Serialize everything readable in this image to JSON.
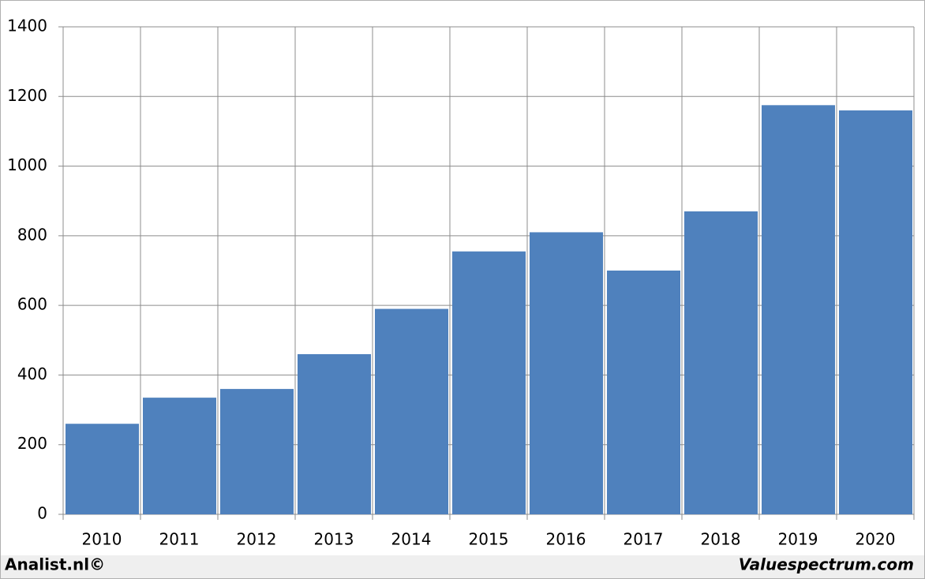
{
  "chart_data": {
    "type": "bar",
    "categories": [
      "2010",
      "2011",
      "2012",
      "2013",
      "2014",
      "2015",
      "2016",
      "2017",
      "2018",
      "2019",
      "2020"
    ],
    "values": [
      260,
      335,
      360,
      460,
      590,
      755,
      810,
      700,
      870,
      1175,
      1160
    ],
    "color": "#4f81bd",
    "ylim": [
      0,
      1400
    ],
    "yticks": [
      0,
      200,
      400,
      600,
      800,
      1000,
      1200,
      1400
    ],
    "grid": true,
    "source": "Analist.nl©",
    "credit": "Valuespectrum.com"
  }
}
